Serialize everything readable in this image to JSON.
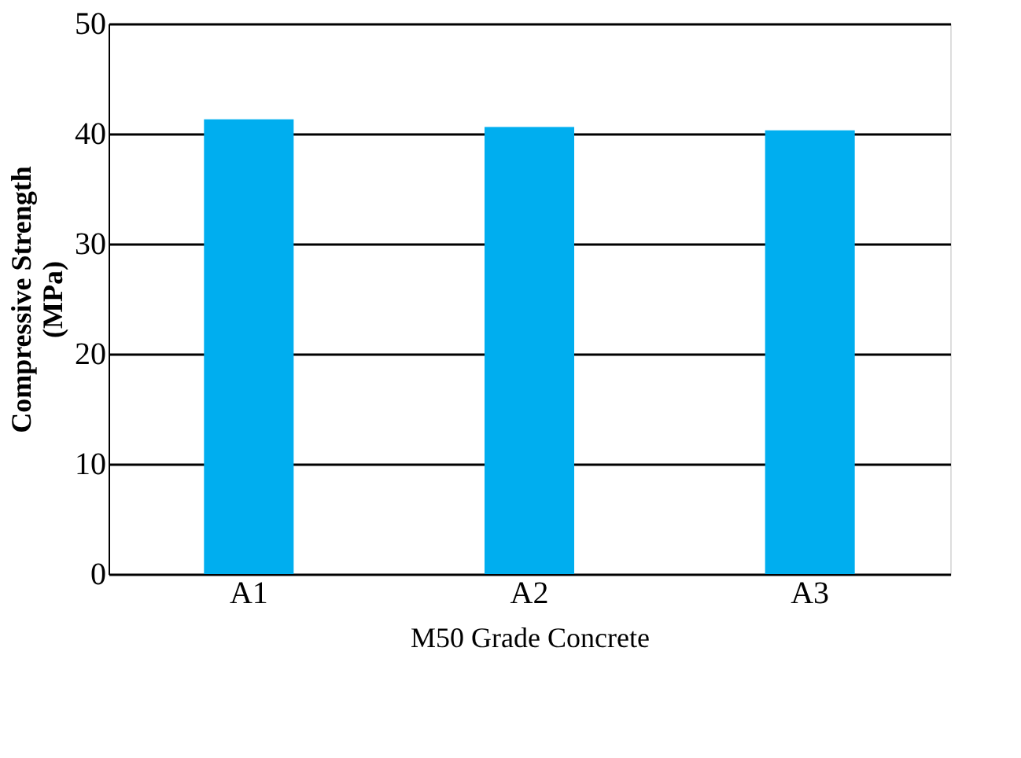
{
  "chart_data": {
    "type": "bar",
    "xlabel": "M50 Grade Concrete",
    "ylabel": "Compressive Strength\n(MPa)",
    "categories": [
      "A1",
      "A2",
      "A3"
    ],
    "series": [
      {
        "color": "#00aeef",
        "values": [
          41.3,
          40.6,
          40.3
        ]
      }
    ],
    "ylim": [
      0,
      50
    ],
    "yticks": [
      0,
      10,
      20,
      30,
      40,
      50
    ],
    "grid": "y",
    "legend": false
  }
}
